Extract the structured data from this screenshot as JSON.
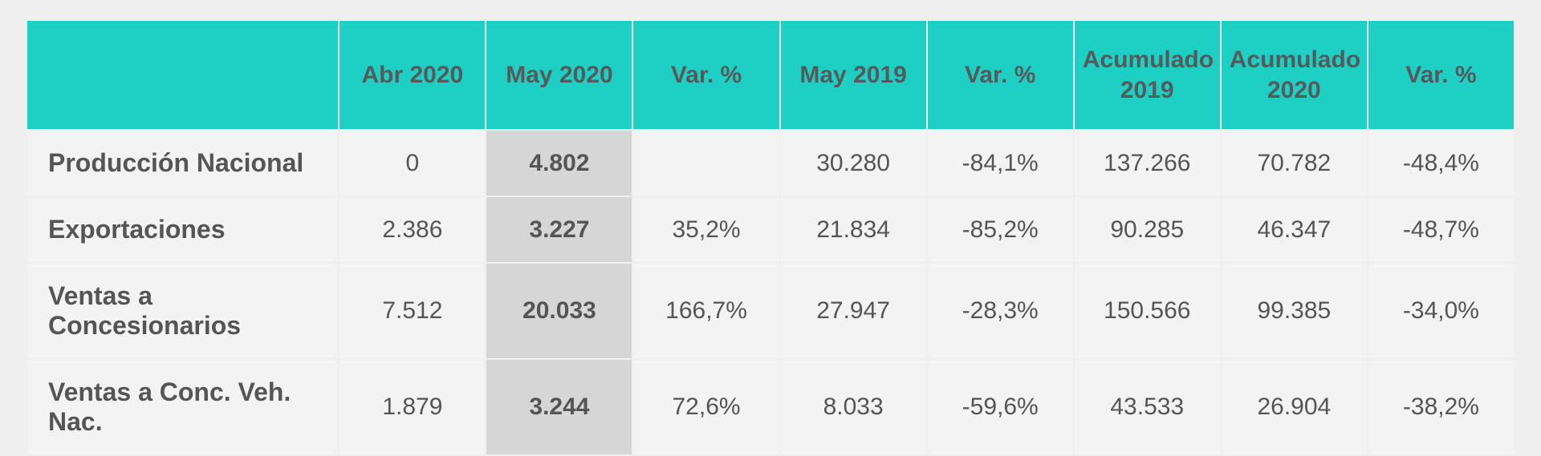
{
  "table": {
    "type": "table",
    "background_color": "#efefef",
    "header_bg": "#1ecfc3",
    "header_text_color": "#555b5c",
    "cell_bg": "#f3f3f3",
    "highlight_bg": "#d6d6d6",
    "border_color": "#efefef",
    "font_family": "Segoe UI",
    "header_fontsize": 30,
    "cell_fontsize": 30,
    "label_fontsize": 32,
    "columns": [
      {
        "key": "label",
        "header": "",
        "width": "21%",
        "align": "left"
      },
      {
        "key": "abr2020",
        "header": "Abr 2020",
        "width": "9.875%",
        "align": "center"
      },
      {
        "key": "may2020",
        "header": "May 2020",
        "width": "9.875%",
        "align": "center",
        "highlight": true
      },
      {
        "key": "var1",
        "header": "Var. %",
        "width": "9.875%",
        "align": "center"
      },
      {
        "key": "may2019",
        "header": "May 2019",
        "width": "9.875%",
        "align": "center"
      },
      {
        "key": "var2",
        "header": "Var. %",
        "width": "9.875%",
        "align": "center"
      },
      {
        "key": "acum2019",
        "header": "Acumulado 2019",
        "width": "9.875%",
        "align": "center"
      },
      {
        "key": "acum2020",
        "header": "Acumulado 2020",
        "width": "9.875%",
        "align": "center"
      },
      {
        "key": "var3",
        "header": "Var. %",
        "width": "9.875%",
        "align": "center"
      }
    ],
    "rows": [
      {
        "label": "Producción Nacional",
        "abr2020": "0",
        "may2020": "4.802",
        "var1": "",
        "may2019": "30.280",
        "var2": "-84,1%",
        "acum2019": "137.266",
        "acum2020": "70.782",
        "var3": "-48,4%"
      },
      {
        "label": "Exportaciones",
        "abr2020": "2.386",
        "may2020": "3.227",
        "var1": "35,2%",
        "may2019": "21.834",
        "var2": "-85,2%",
        "acum2019": "90.285",
        "acum2020": "46.347",
        "var3": "-48,7%"
      },
      {
        "label": "Ventas a Concesionarios",
        "abr2020": "7.512",
        "may2020": "20.033",
        "var1": "166,7%",
        "may2019": "27.947",
        "var2": "-28,3%",
        "acum2019": "150.566",
        "acum2020": "99.385",
        "var3": "-34,0%"
      },
      {
        "label": "Ventas a Conc. Veh. Nac.",
        "abr2020": "1.879",
        "may2020": "3.244",
        "var1": "72,6%",
        "may2019": "8.033",
        "var2": "-59,6%",
        "acum2019": "43.533",
        "acum2020": "26.904",
        "var3": "-38,2%"
      }
    ]
  }
}
